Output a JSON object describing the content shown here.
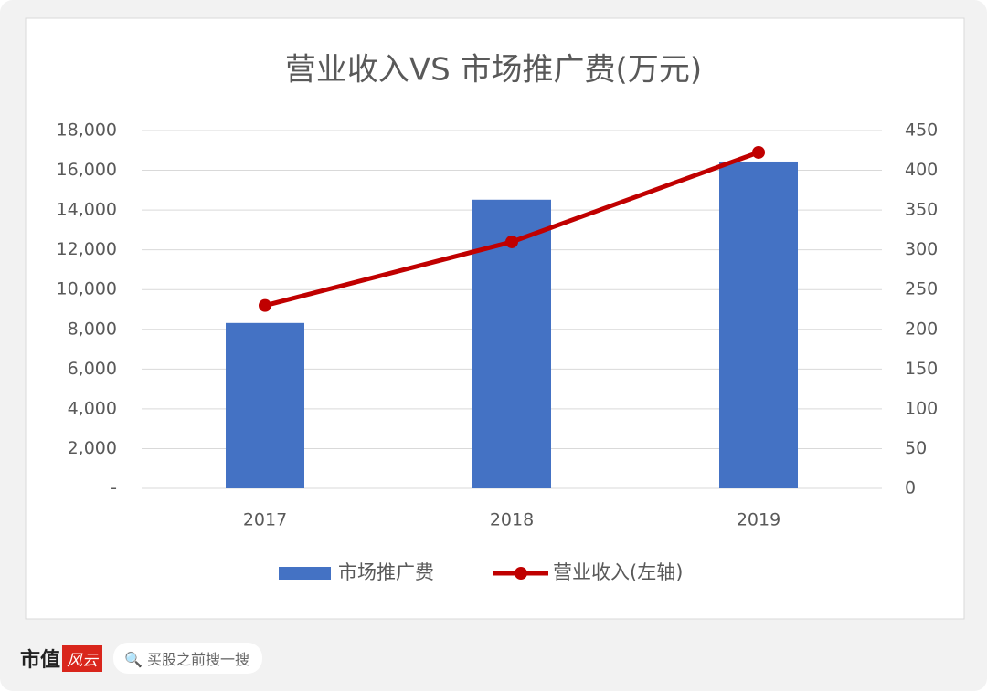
{
  "chart_data": {
    "type": "bar-line",
    "title": "营业收入VS 市场推广费(万元)",
    "categories": [
      "2017",
      "2018",
      "2019"
    ],
    "series": [
      {
        "name": "市场推广费",
        "type": "bar",
        "axis": "y2",
        "color": "#4472c4",
        "values": [
          208,
          363,
          411
        ]
      },
      {
        "name": "营业收入(左轴)",
        "type": "line",
        "color": "#c00000",
        "values": [
          9200,
          12400,
          16900
        ]
      }
    ],
    "ylim": [
      0,
      18000
    ],
    "yticks": [
      {
        "value": 0,
        "label": "-"
      },
      {
        "value": 2000,
        "label": "2,000"
      },
      {
        "value": 4000,
        "label": "4,000"
      },
      {
        "value": 6000,
        "label": "6,000"
      },
      {
        "value": 8000,
        "label": "8,000"
      },
      {
        "value": 10000,
        "label": "10,000"
      },
      {
        "value": 12000,
        "label": "12,000"
      },
      {
        "value": 14000,
        "label": "14,000"
      },
      {
        "value": 16000,
        "label": "16,000"
      },
      {
        "value": 18000,
        "label": "18,000"
      }
    ],
    "y2lim": [
      0,
      450
    ],
    "y2ticks": [
      0,
      50,
      100,
      150,
      200,
      250,
      300,
      350,
      400,
      450
    ],
    "grid": true,
    "legend": "bottom"
  },
  "footer": {
    "brand": "市值",
    "brand_mark": "风云",
    "search": "买股之前搜一搜"
  }
}
